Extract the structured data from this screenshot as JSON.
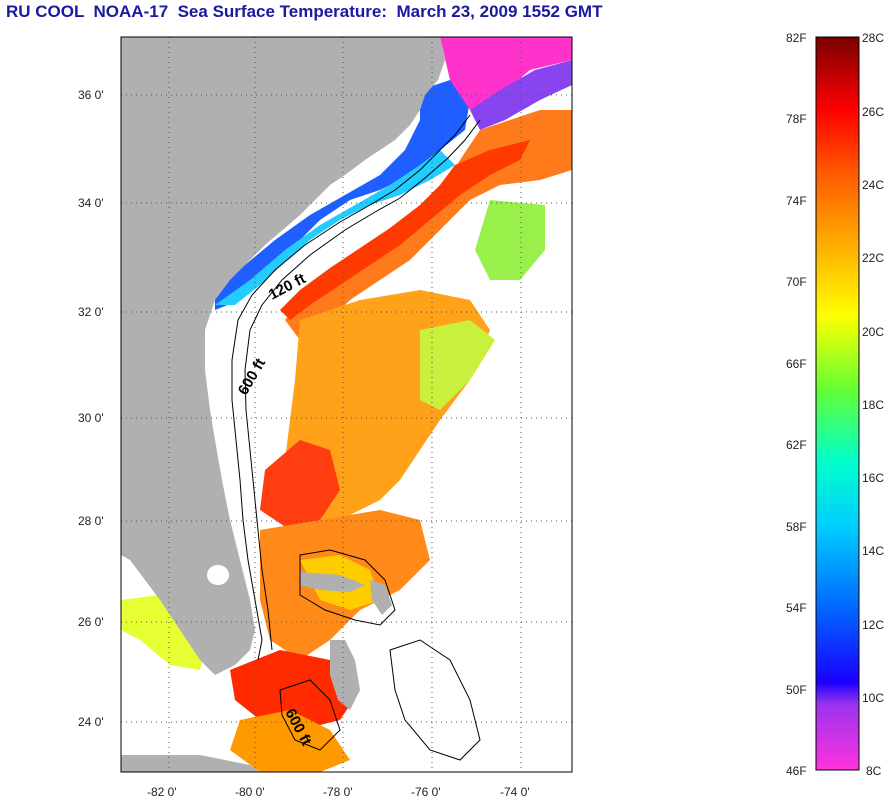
{
  "title": "RU COOL  NOAA-17  Sea Surface Temperature:  March 23, 2009 1552 GMT",
  "map": {
    "lon_labels": [
      "-82 0'",
      "-80 0'",
      "-78 0'",
      "-76 0'",
      "-74 0'"
    ],
    "lat_labels": [
      "36 0'",
      "34 0'",
      "32 0'",
      "30 0'",
      "28 0'",
      "26 0'",
      "24 0'"
    ],
    "contours": [
      "120 ft",
      "600 ft",
      "600 ft"
    ]
  },
  "colorbar": {
    "f_labels": [
      "82F",
      "78F",
      "74F",
      "70F",
      "66F",
      "62F",
      "58F",
      "54F",
      "50F",
      "46F"
    ],
    "c_labels": [
      "28C",
      "26C",
      "24C",
      "22C",
      "20C",
      "18C",
      "16C",
      "14C",
      "12C",
      "10C",
      "8C"
    ],
    "colors": [
      "#ff33cc",
      "#8a2be2",
      "#0000ff",
      "#0099ff",
      "#00ffff",
      "#33ff99",
      "#ccff33",
      "#ffff00",
      "#ffaa00",
      "#ff5500",
      "#ff0000",
      "#b30000",
      "#700000"
    ]
  }
}
